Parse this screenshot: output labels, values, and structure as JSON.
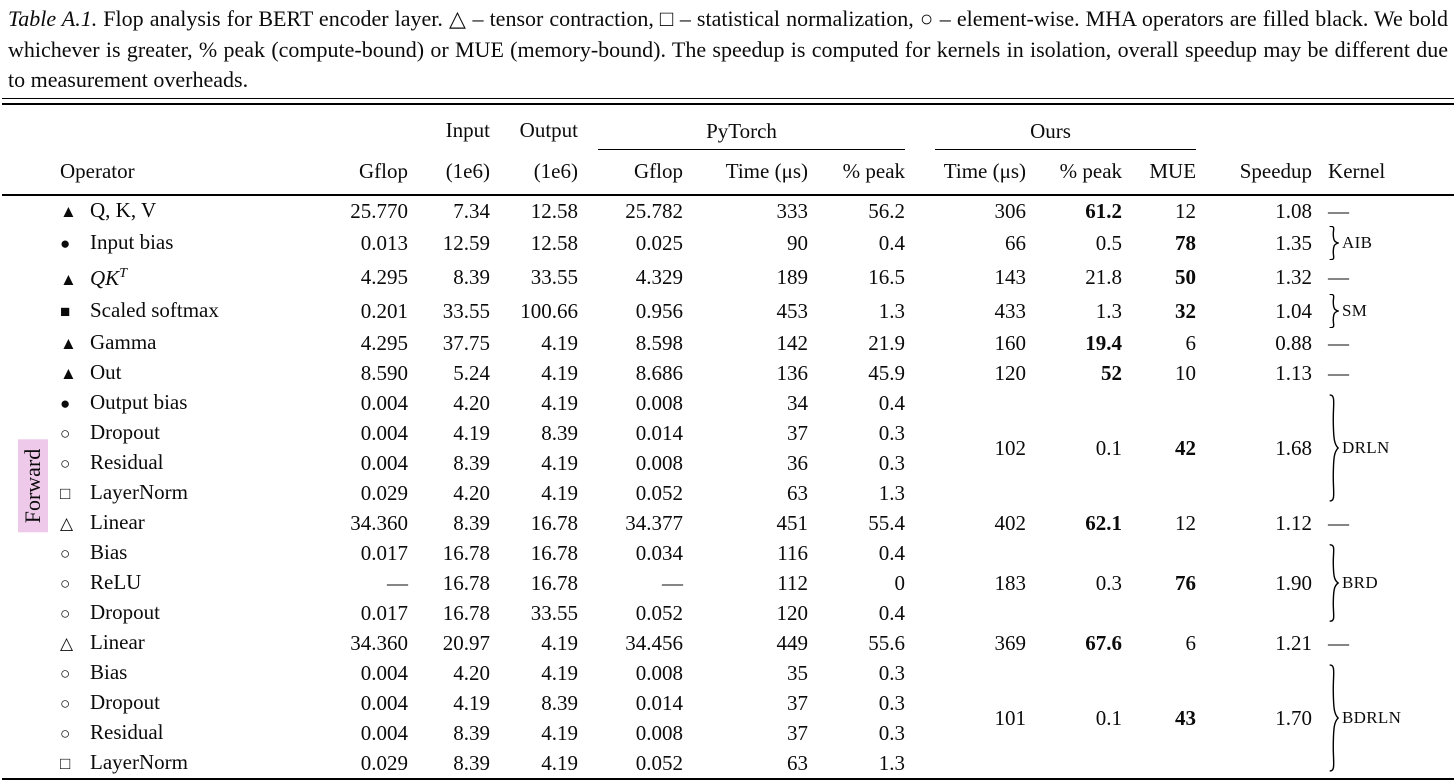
{
  "caption": {
    "label": "Table A.1.",
    "body": " Flop analysis for BERT encoder layer. △ – tensor contraction, □ – statistical normalization, ○ – element-wise. MHA operators are filled black. We bold whichever is greater, % peak (compute-bound) or MUE (memory-bound). The speedup is computed for kernels in isolation, overall speedup may be different due to measurement overheads."
  },
  "side_label": {
    "text": "Forward"
  },
  "colors": {
    "forward_highlight": "#efc9ea",
    "text": "#0b0b0b",
    "background": "#ffffff"
  },
  "symbol_glyphs": {
    "triangle-filled": "▲",
    "triangle-open": "△",
    "circle-filled": "●",
    "circle-open": "○",
    "square-filled": "■",
    "square-open": "□"
  },
  "table": {
    "kernel_dash": "—",
    "header": {
      "input": "Input",
      "output": "Output",
      "pytorch": "PyTorch",
      "ours": "Ours",
      "columns": [
        "Operator",
        "Gflop",
        "(1e6)",
        "(1e6)",
        "Gflop",
        "Time (μs)",
        "% peak",
        "Time (μs)",
        "% peak",
        "MUE",
        "Speedup",
        "Kernel"
      ]
    },
    "rows": [
      {
        "sym": "triangle-filled",
        "label": "Q, K, V",
        "gflop": "25.770",
        "input": "7.34",
        "output": "12.58",
        "pt_gflop": "25.782",
        "pt_time": "333",
        "pt_peak": "56.2",
        "ours": {
          "rows": 1,
          "time": "306",
          "peak": "61.2",
          "peak_bold": true,
          "mue": "12",
          "mue_bold": false,
          "speedup": "1.08"
        },
        "kernel": {
          "rows": 1,
          "type": "dash"
        }
      },
      {
        "sym": "circle-filled",
        "label": "Input bias",
        "gflop": "0.013",
        "input": "12.59",
        "output": "12.58",
        "pt_gflop": "0.025",
        "pt_time": "90",
        "pt_peak": "0.4",
        "ours": {
          "rows": 1,
          "time": "66",
          "peak": "0.5",
          "peak_bold": false,
          "mue": "78",
          "mue_bold": true,
          "speedup": "1.35"
        },
        "kernel": {
          "rows": 1,
          "type": "brace",
          "label": "AIB"
        }
      },
      {
        "sym": "triangle-filled",
        "label": "QK",
        "sup": "T",
        "gflop": "4.295",
        "input": "8.39",
        "output": "33.55",
        "pt_gflop": "4.329",
        "pt_time": "189",
        "pt_peak": "16.5",
        "ours": {
          "rows": 1,
          "time": "143",
          "peak": "21.8",
          "peak_bold": false,
          "mue": "50",
          "mue_bold": true,
          "speedup": "1.32"
        },
        "kernel": {
          "rows": 1,
          "type": "dash"
        }
      },
      {
        "sym": "square-filled",
        "label": "Scaled softmax",
        "gflop": "0.201",
        "input": "33.55",
        "output": "100.66",
        "pt_gflop": "0.956",
        "pt_time": "453",
        "pt_peak": "1.3",
        "ours": {
          "rows": 1,
          "time": "433",
          "peak": "1.3",
          "peak_bold": false,
          "mue": "32",
          "mue_bold": true,
          "speedup": "1.04"
        },
        "kernel": {
          "rows": 1,
          "type": "brace",
          "label": "SM"
        }
      },
      {
        "sym": "triangle-filled",
        "label": "Gamma",
        "gflop": "4.295",
        "input": "37.75",
        "output": "4.19",
        "pt_gflop": "8.598",
        "pt_time": "142",
        "pt_peak": "21.9",
        "ours": {
          "rows": 1,
          "time": "160",
          "peak": "19.4",
          "peak_bold": true,
          "mue": "6",
          "mue_bold": false,
          "speedup": "0.88"
        },
        "kernel": {
          "rows": 1,
          "type": "dash"
        }
      },
      {
        "sym": "triangle-filled",
        "label": "Out",
        "gflop": "8.590",
        "input": "5.24",
        "output": "4.19",
        "pt_gflop": "8.686",
        "pt_time": "136",
        "pt_peak": "45.9",
        "ours": {
          "rows": 1,
          "time": "120",
          "peak": "52",
          "peak_bold": true,
          "mue": "10",
          "mue_bold": false,
          "speedup": "1.13"
        },
        "kernel": {
          "rows": 1,
          "type": "dash"
        }
      },
      {
        "sym": "circle-filled",
        "label": "Output bias",
        "gflop": "0.004",
        "input": "4.20",
        "output": "4.19",
        "pt_gflop": "0.008",
        "pt_time": "34",
        "pt_peak": "0.4",
        "ours": {
          "rows": 4,
          "time": "102",
          "peak": "0.1",
          "peak_bold": false,
          "mue": "42",
          "mue_bold": true,
          "speedup": "1.68"
        },
        "kernel": {
          "rows": 4,
          "type": "brace",
          "label": "DRLN"
        }
      },
      {
        "sym": "circle-open",
        "label": "Dropout",
        "gflop": "0.004",
        "input": "4.19",
        "output": "8.39",
        "pt_gflop": "0.014",
        "pt_time": "37",
        "pt_peak": "0.3"
      },
      {
        "sym": "circle-open",
        "label": "Residual",
        "gflop": "0.004",
        "input": "8.39",
        "output": "4.19",
        "pt_gflop": "0.008",
        "pt_time": "36",
        "pt_peak": "0.3"
      },
      {
        "sym": "square-open",
        "label": "LayerNorm",
        "gflop": "0.029",
        "input": "4.20",
        "output": "4.19",
        "pt_gflop": "0.052",
        "pt_time": "63",
        "pt_peak": "1.3"
      },
      {
        "sym": "triangle-open",
        "label": "Linear",
        "gflop": "34.360",
        "input": "8.39",
        "output": "16.78",
        "pt_gflop": "34.377",
        "pt_time": "451",
        "pt_peak": "55.4",
        "ours": {
          "rows": 1,
          "time": "402",
          "peak": "62.1",
          "peak_bold": true,
          "mue": "12",
          "mue_bold": false,
          "speedup": "1.12"
        },
        "kernel": {
          "rows": 1,
          "type": "dash"
        }
      },
      {
        "sym": "circle-open",
        "label": "Bias",
        "gflop": "0.017",
        "input": "16.78",
        "output": "16.78",
        "pt_gflop": "0.034",
        "pt_time": "116",
        "pt_peak": "0.4",
        "ours": {
          "rows": 3,
          "time": "183",
          "peak": "0.3",
          "peak_bold": false,
          "mue": "76",
          "mue_bold": true,
          "speedup": "1.90"
        },
        "kernel": {
          "rows": 3,
          "type": "brace",
          "label": "BRD"
        }
      },
      {
        "sym": "circle-open",
        "label": "ReLU",
        "gflop": "—",
        "input": "16.78",
        "output": "16.78",
        "pt_gflop": "—",
        "pt_time": "112",
        "pt_peak": "0"
      },
      {
        "sym": "circle-open",
        "label": "Dropout",
        "gflop": "0.017",
        "input": "16.78",
        "output": "33.55",
        "pt_gflop": "0.052",
        "pt_time": "120",
        "pt_peak": "0.4"
      },
      {
        "sym": "triangle-open",
        "label": "Linear",
        "gflop": "34.360",
        "input": "20.97",
        "output": "4.19",
        "pt_gflop": "34.456",
        "pt_time": "449",
        "pt_peak": "55.6",
        "ours": {
          "rows": 1,
          "time": "369",
          "peak": "67.6",
          "peak_bold": true,
          "mue": "6",
          "mue_bold": false,
          "speedup": "1.21"
        },
        "kernel": {
          "rows": 1,
          "type": "dash"
        }
      },
      {
        "sym": "circle-open",
        "label": "Bias",
        "gflop": "0.004",
        "input": "4.20",
        "output": "4.19",
        "pt_gflop": "0.008",
        "pt_time": "35",
        "pt_peak": "0.3",
        "ours": {
          "rows": 4,
          "time": "101",
          "peak": "0.1",
          "peak_bold": false,
          "mue": "43",
          "mue_bold": true,
          "speedup": "1.70"
        },
        "kernel": {
          "rows": 4,
          "type": "brace",
          "label": "BDRLN"
        }
      },
      {
        "sym": "circle-open",
        "label": "Dropout",
        "gflop": "0.004",
        "input": "4.19",
        "output": "8.39",
        "pt_gflop": "0.014",
        "pt_time": "37",
        "pt_peak": "0.3"
      },
      {
        "sym": "circle-open",
        "label": "Residual",
        "gflop": "0.004",
        "input": "8.39",
        "output": "4.19",
        "pt_gflop": "0.008",
        "pt_time": "37",
        "pt_peak": "0.3"
      },
      {
        "sym": "square-open",
        "label": "LayerNorm",
        "gflop": "0.029",
        "input": "8.39",
        "output": "4.19",
        "pt_gflop": "0.052",
        "pt_time": "63",
        "pt_peak": "1.3"
      }
    ]
  }
}
